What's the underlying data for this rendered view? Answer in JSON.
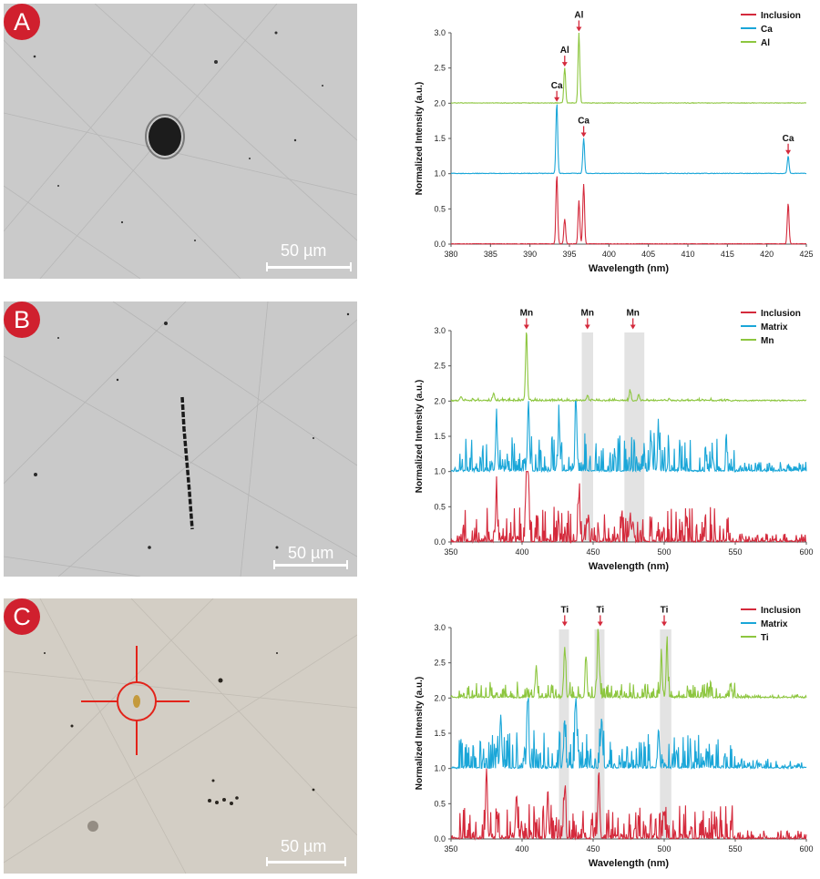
{
  "panels": [
    {
      "badge": "A",
      "scale_bar": "50 µm",
      "micrograph": {
        "tint": "#c9c9c9"
      },
      "chart_data": {
        "type": "line",
        "xlabel": "Wavelength (nm)",
        "ylabel": "Normalized Intensity (a.u.)",
        "xlim": [
          380,
          425
        ],
        "ylim": [
          0,
          3.0
        ],
        "xticks": [
          380,
          385,
          390,
          395,
          400,
          405,
          410,
          415,
          420,
          425
        ],
        "yticks": [
          0.0,
          0.5,
          1.0,
          1.5,
          2.0,
          2.5,
          3.0
        ],
        "legend_position": "top-right",
        "series": [
          {
            "name": "Inclusion",
            "color": "#d42a3c",
            "offset": 0,
            "peaks": [
              [
                393.4,
                0.98
              ],
              [
                394.4,
                0.35
              ],
              [
                396.2,
                0.62
              ],
              [
                396.8,
                0.85
              ],
              [
                422.7,
                0.58
              ]
            ]
          },
          {
            "name": "Ca",
            "color": "#1aa6d8",
            "offset": 1,
            "peaks": [
              [
                393.4,
                1.0
              ],
              [
                396.8,
                0.5
              ],
              [
                422.7,
                0.25
              ]
            ]
          },
          {
            "name": "Al",
            "color": "#8dc63f",
            "offset": 2,
            "peaks": [
              [
                394.4,
                0.5
              ],
              [
                396.2,
                1.0
              ]
            ]
          }
        ],
        "annotations": [
          {
            "label": "Ca",
            "x": 393.4,
            "y": 2.02
          },
          {
            "label": "Al",
            "x": 394.4,
            "y": 2.52
          },
          {
            "label": "Al",
            "x": 396.2,
            "y": 3.02
          },
          {
            "label": "Ca",
            "x": 396.8,
            "y": 1.52
          },
          {
            "label": "Ca",
            "x": 422.7,
            "y": 1.27
          }
        ],
        "highlight_bands": []
      }
    },
    {
      "badge": "B",
      "scale_bar": "50 µm",
      "micrograph": {
        "tint": "#c8c8c8"
      },
      "chart_data": {
        "type": "line",
        "xlabel": "Wavelength (nm)",
        "ylabel": "Normalized Intensity (a.u.)",
        "xlim": [
          350,
          600
        ],
        "ylim": [
          0,
          3.0
        ],
        "xticks": [
          350,
          400,
          450,
          500,
          550,
          600
        ],
        "yticks": [
          0.0,
          0.5,
          1.0,
          1.5,
          2.0,
          2.5,
          3.0
        ],
        "legend_position": "top-right",
        "series": [
          {
            "name": "Inclusion",
            "color": "#d42a3c",
            "offset": 0,
            "noise": 0.55,
            "peaks": [
              [
                403.1,
                1.0
              ],
              [
                404.2,
                0.8
              ],
              [
                382,
                0.6
              ],
              [
                440,
                0.62
              ],
              [
                446,
                0.28
              ],
              [
                476,
                0.35
              ],
              [
                478,
                0.28
              ]
            ]
          },
          {
            "name": "Matrix",
            "color": "#1aa6d8",
            "offset": 1,
            "noise": 0.6,
            "peaks": [
              [
                404.5,
                0.95
              ],
              [
                438,
                0.95
              ],
              [
                382,
                0.7
              ],
              [
                426,
                0.75
              ],
              [
                496,
                0.55
              ],
              [
                491,
                0.45
              ]
            ]
          },
          {
            "name": "Mn",
            "color": "#8dc63f",
            "offset": 2,
            "noise": 0.03,
            "peaks": [
              [
                403.1,
                1.0
              ],
              [
                357,
                0.06
              ],
              [
                380,
                0.1
              ],
              [
                446,
                0.07
              ],
              [
                476,
                0.14
              ],
              [
                482,
                0.08
              ]
            ]
          }
        ],
        "annotations": [
          {
            "label": "Mn",
            "x": 403.1,
            "y": 3.02
          },
          {
            "label": "Mn",
            "x": 446,
            "y": 3.02
          },
          {
            "label": "Mn",
            "x": 478,
            "y": 3.02
          }
        ],
        "highlight_bands": [
          [
            442,
            450
          ],
          [
            472,
            486
          ]
        ]
      }
    },
    {
      "badge": "C",
      "scale_bar": "50 µm",
      "micrograph": {
        "tint": "#d2cdc4"
      },
      "chart_data": {
        "type": "line",
        "xlabel": "Wavelength (nm)",
        "ylabel": "Normalized Intensity (a.u.)",
        "xlim": [
          350,
          600
        ],
        "ylim": [
          0,
          3.0
        ],
        "xticks": [
          350,
          400,
          450,
          500,
          550,
          600
        ],
        "yticks": [
          0.0,
          0.5,
          1.0,
          1.5,
          2.0,
          2.5,
          3.0
        ],
        "legend_position": "top-right",
        "series": [
          {
            "name": "Inclusion",
            "color": "#d42a3c",
            "offset": 0,
            "noise": 0.55,
            "peaks": [
              [
                375,
                0.95
              ],
              [
                454,
                0.95
              ],
              [
                430,
                0.68
              ],
              [
                396,
                0.6
              ],
              [
                418,
                0.55
              ],
              [
                500,
                0.3
              ]
            ]
          },
          {
            "name": "Matrix",
            "color": "#1aa6d8",
            "offset": 1,
            "noise": 0.6,
            "peaks": [
              [
                404,
                1.0
              ],
              [
                438,
                0.95
              ],
              [
                385,
                0.75
              ],
              [
                456,
                0.7
              ],
              [
                430,
                0.55
              ],
              [
                496,
                0.55
              ]
            ]
          },
          {
            "name": "Ti",
            "color": "#8dc63f",
            "offset": 2,
            "noise": 0.25,
            "peaks": [
              [
                453.5,
                1.0
              ],
              [
                430,
                0.72
              ],
              [
                502,
                0.7
              ],
              [
                498,
                0.55
              ],
              [
                445,
                0.55
              ],
              [
                410,
                0.45
              ]
            ]
          }
        ],
        "annotations": [
          {
            "label": "Ti",
            "x": 430,
            "y": 3.02
          },
          {
            "label": "Ti",
            "x": 455,
            "y": 3.02
          },
          {
            "label": "Ti",
            "x": 500,
            "y": 3.02
          }
        ],
        "highlight_bands": [
          [
            426,
            433
          ],
          [
            451,
            458
          ],
          [
            497,
            505
          ]
        ]
      }
    }
  ]
}
